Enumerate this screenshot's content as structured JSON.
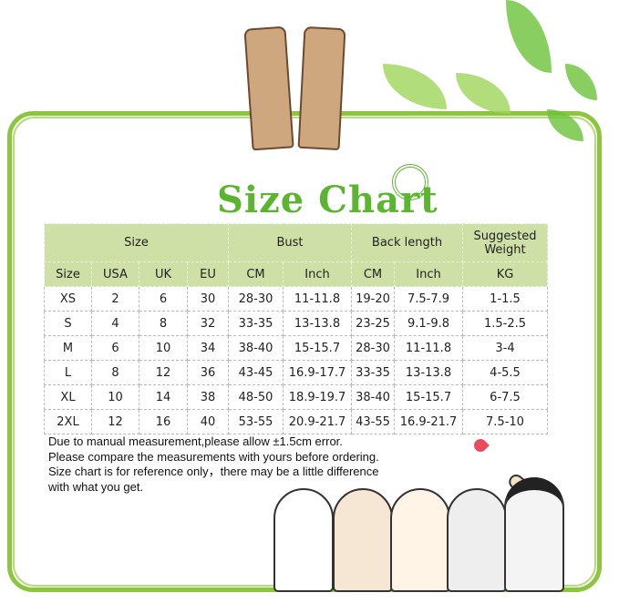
{
  "title": "Size Chart",
  "table": {
    "group_headers": [
      "Size",
      "Bust",
      "Back length",
      "Suggested Weight"
    ],
    "sub_headers": [
      "Size",
      "USA",
      "UK",
      "EU",
      "CM",
      "Inch",
      "CM",
      "Inch",
      "KG"
    ],
    "rows": [
      [
        "XS",
        "2",
        "6",
        "30",
        "28-30",
        "11-11.8",
        "19-20",
        "7.5-7.9",
        "1-1.5"
      ],
      [
        "S",
        "4",
        "8",
        "32",
        "33-35",
        "13-13.8",
        "23-25",
        "9.1-9.8",
        "1.5-2.5"
      ],
      [
        "M",
        "6",
        "10",
        "34",
        "38-40",
        "15-15.7",
        "28-30",
        "11-11.8",
        "3-4"
      ],
      [
        "L",
        "8",
        "12",
        "36",
        "43-45",
        "16.9-17.7",
        "33-35",
        "13-13.8",
        "4-5.5"
      ],
      [
        "XL",
        "10",
        "14",
        "38",
        "48-50",
        "18.9-19.7",
        "38-40",
        "15-15.7",
        "6-7.5"
      ],
      [
        "2XL",
        "12",
        "16",
        "40",
        "53-55",
        "20.9-21.7",
        "43-55",
        "16.9-21.7",
        "7.5-10"
      ]
    ]
  },
  "notes": [
    "Due to manual measurement,please allow ±1.5cm error.",
    "Please compare the measurements with yours before ordering.",
    "Size chart is for reference only，there may be a little difference",
    "with what you get."
  ],
  "colors": {
    "accent": "#5cb531",
    "header_bg": "#cfe0a6",
    "frame": "#8cc63f"
  }
}
